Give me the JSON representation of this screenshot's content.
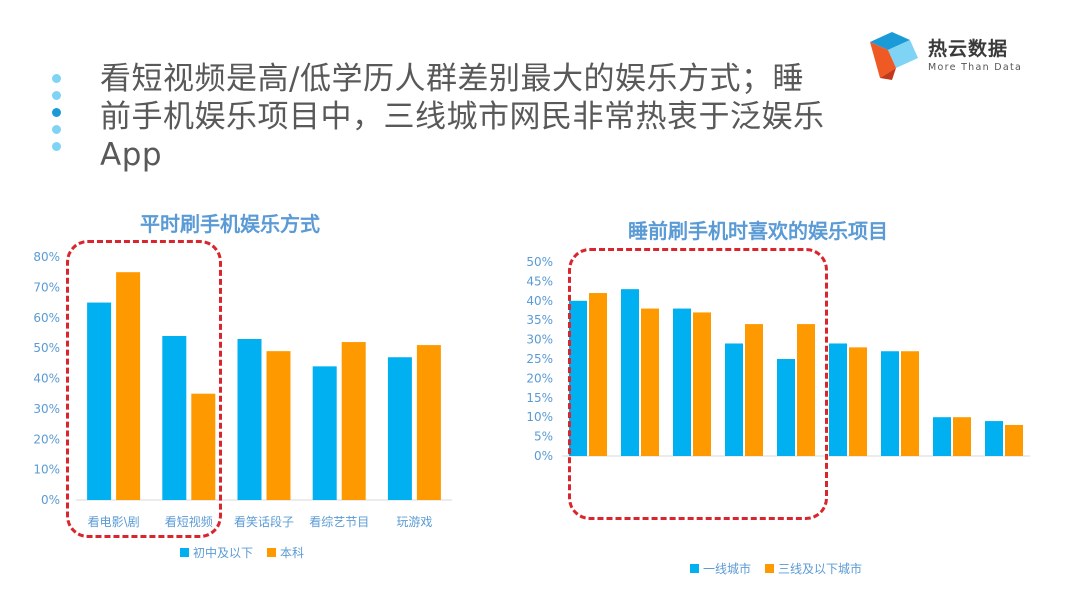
{
  "headline": {
    "line1": "看短视频是高/低学历人群差别最大的娱乐方式；睡",
    "line2": "前手机娱乐项目中，三线城市网民非常热衷于泛娱乐",
    "line3": "App"
  },
  "logo": {
    "name": "热云数据",
    "tagline": "More Than Data"
  },
  "colors": {
    "blue": "#00b0f0",
    "orange": "#ff9900",
    "axis": "#5b9bd5",
    "title": "#5b9bd5",
    "highlight": "#d9262d"
  },
  "chart_data": [
    {
      "type": "bar",
      "title": "平时刷手机娱乐方式",
      "categories": [
        "看电影\\剧",
        "看短视频",
        "看笑话段子",
        "看综艺节目",
        "玩游戏"
      ],
      "series": [
        {
          "name": "初中及以下",
          "values": [
            65,
            54,
            53,
            44,
            47
          ]
        },
        {
          "name": "本科",
          "values": [
            75,
            35,
            49,
            52,
            51
          ]
        }
      ],
      "yticks": [
        "0%",
        "10%",
        "20%",
        "30%",
        "40%",
        "50%",
        "60%",
        "70%",
        "80%"
      ],
      "ylim": [
        0,
        80
      ],
      "highlighted_categories": 2
    },
    {
      "type": "bar",
      "title": "睡前刷手机时喜欢的娱乐项目",
      "categories": [
        "",
        "",
        "",
        "",
        "",
        "",
        "",
        "",
        ""
      ],
      "series": [
        {
          "name": "一线城市",
          "values": [
            40,
            43,
            38,
            29,
            25,
            29,
            27,
            10,
            9
          ]
        },
        {
          "name": "三线及以下城市",
          "values": [
            42,
            38,
            37,
            34,
            34,
            28,
            27,
            10,
            8
          ]
        }
      ],
      "yticks": [
        "0%",
        "5%",
        "10%",
        "15%",
        "20%",
        "25%",
        "30%",
        "35%",
        "40%",
        "45%",
        "50%"
      ],
      "ylim": [
        0,
        50
      ],
      "highlighted_categories": 5
    }
  ]
}
